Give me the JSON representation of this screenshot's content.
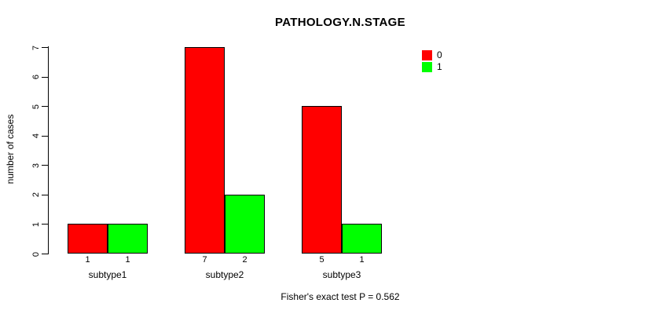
{
  "chart_data": {
    "type": "bar",
    "title": "PATHOLOGY.N.STAGE",
    "categories": [
      "subtype1",
      "subtype2",
      "subtype3"
    ],
    "series": [
      {
        "name": "0",
        "color": "#ff0000",
        "values": [
          1,
          7,
          5
        ]
      },
      {
        "name": "1",
        "color": "#00ff00",
        "values": [
          1,
          2,
          1
        ]
      }
    ],
    "bar_value_labels": [
      [
        1,
        1
      ],
      [
        7,
        2
      ],
      [
        5,
        1
      ]
    ],
    "xlabel": "",
    "ylabel": "number of cases",
    "ylim": [
      0,
      7
    ],
    "yticks": [
      0,
      1,
      2,
      3,
      4,
      5,
      6,
      7
    ],
    "grid": false,
    "legend_position": "top-right",
    "annotation": "Fisher's exact test P = 0.562"
  }
}
